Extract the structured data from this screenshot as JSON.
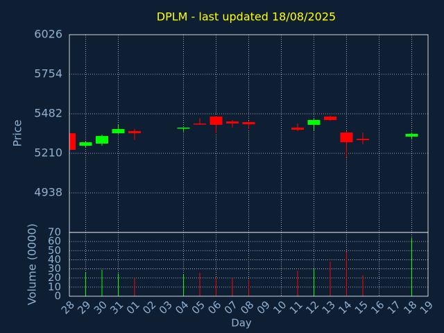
{
  "chart_data": [
    {
      "type": "candlestick",
      "title": "DPLM - last updated 18/08/2025",
      "y_label": "Price",
      "categories": [
        "28",
        "29",
        "30",
        "31",
        "01",
        "02",
        "03",
        "04",
        "05",
        "06",
        "07",
        "08",
        "09",
        "10",
        "11",
        "12",
        "13",
        "14",
        "15",
        "16",
        "17",
        "18",
        "19"
      ],
      "open": [
        5348,
        5262,
        5277,
        5348,
        5363,
        null,
        null,
        5382,
        5415,
        5463,
        5429,
        5425,
        null,
        null,
        5387,
        5406,
        5463,
        5353,
        5310,
        null,
        null,
        5325,
        null
      ],
      "high": [
        5348,
        5291,
        5339,
        5410,
        5377,
        null,
        null,
        5387,
        5453,
        5468,
        5439,
        5434,
        null,
        null,
        5415,
        5448,
        5468,
        5363,
        5353,
        null,
        null,
        5353,
        null
      ],
      "low": [
        5234,
        5253,
        5262,
        5344,
        5301,
        null,
        null,
        5358,
        5406,
        5348,
        5387,
        5377,
        null,
        null,
        5363,
        5367,
        5434,
        5181,
        5272,
        null,
        null,
        5305,
        null
      ],
      "close": [
        5234,
        5286,
        5329,
        5377,
        5348,
        null,
        null,
        5387,
        5410,
        5406,
        5415,
        5410,
        null,
        null,
        5372,
        5439,
        5439,
        5286,
        5301,
        null,
        null,
        5344,
        null
      ],
      "up_color": "#00ff00",
      "down_color": "#ff0000",
      "ylim": [
        4666,
        6026
      ],
      "yticks": [
        4938,
        5210,
        5482,
        5754,
        6026
      ],
      "grid": true
    },
    {
      "type": "bar",
      "y_label": "Volume (0000)",
      "x_label": "Day",
      "values": [
        null,
        26,
        29,
        25,
        20,
        null,
        null,
        24,
        26,
        21,
        20,
        18,
        null,
        null,
        28,
        30,
        38,
        49,
        23,
        null,
        null,
        64,
        null
      ],
      "ylim": [
        0,
        70
      ],
      "yticks": [
        0,
        10,
        20,
        30,
        40,
        50,
        60,
        70
      ],
      "grid": true
    }
  ]
}
